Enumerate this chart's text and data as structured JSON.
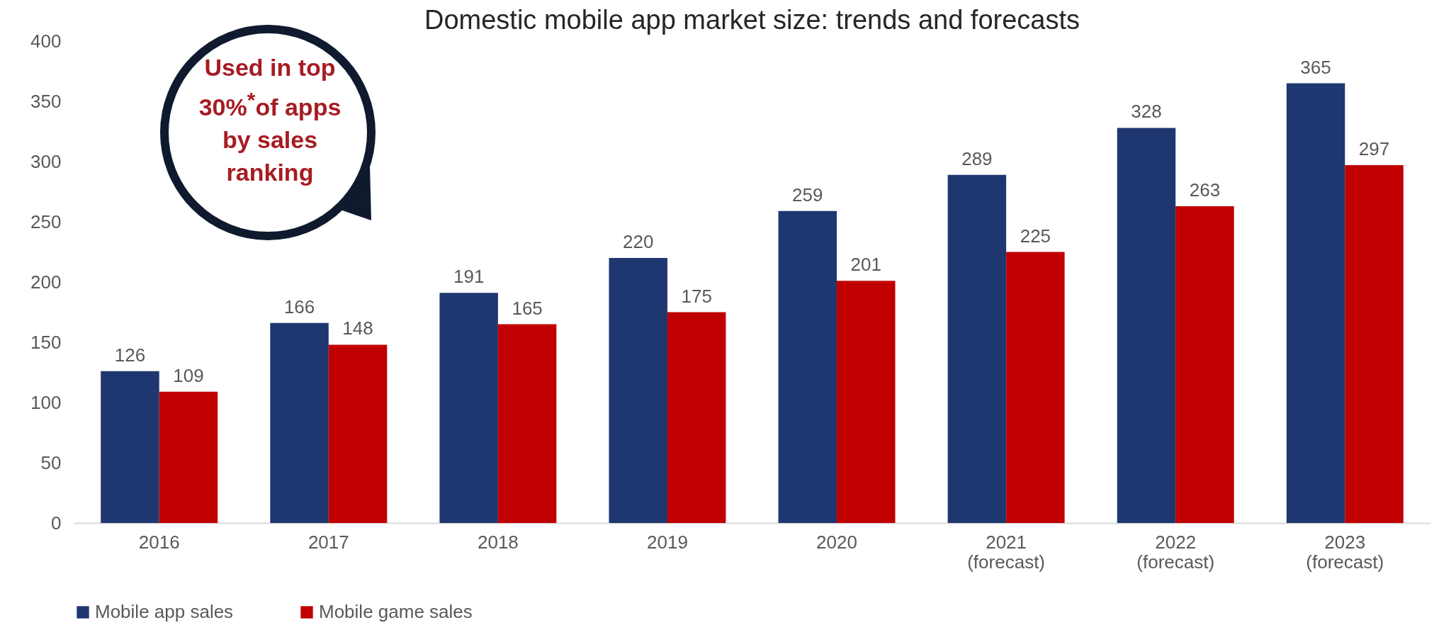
{
  "chart_data": {
    "type": "bar",
    "title": "Domestic mobile app market size: trends and forecasts",
    "categories": [
      "2016",
      "2017",
      "2018",
      "2019",
      "2020",
      "2021 (forecast)",
      "2022 (forecast)",
      "2023 (forecast)"
    ],
    "series": [
      {
        "name": "Mobile app sales",
        "color": "#1f3770",
        "values": [
          126,
          166,
          191,
          220,
          259,
          289,
          328,
          365
        ]
      },
      {
        "name": "Mobile game sales",
        "color": "#c00000",
        "values": [
          109,
          148,
          165,
          175,
          201,
          225,
          263,
          297
        ]
      }
    ],
    "ylim": [
      0,
      400
    ],
    "yticks": [
      0,
      50,
      100,
      150,
      200,
      250,
      300,
      350,
      400
    ],
    "data_labels": true,
    "grid": false,
    "legend": "bottom",
    "annotations": [
      "Used in top 30%$^{*}$of apps by sales ranking"
    ]
  }
}
